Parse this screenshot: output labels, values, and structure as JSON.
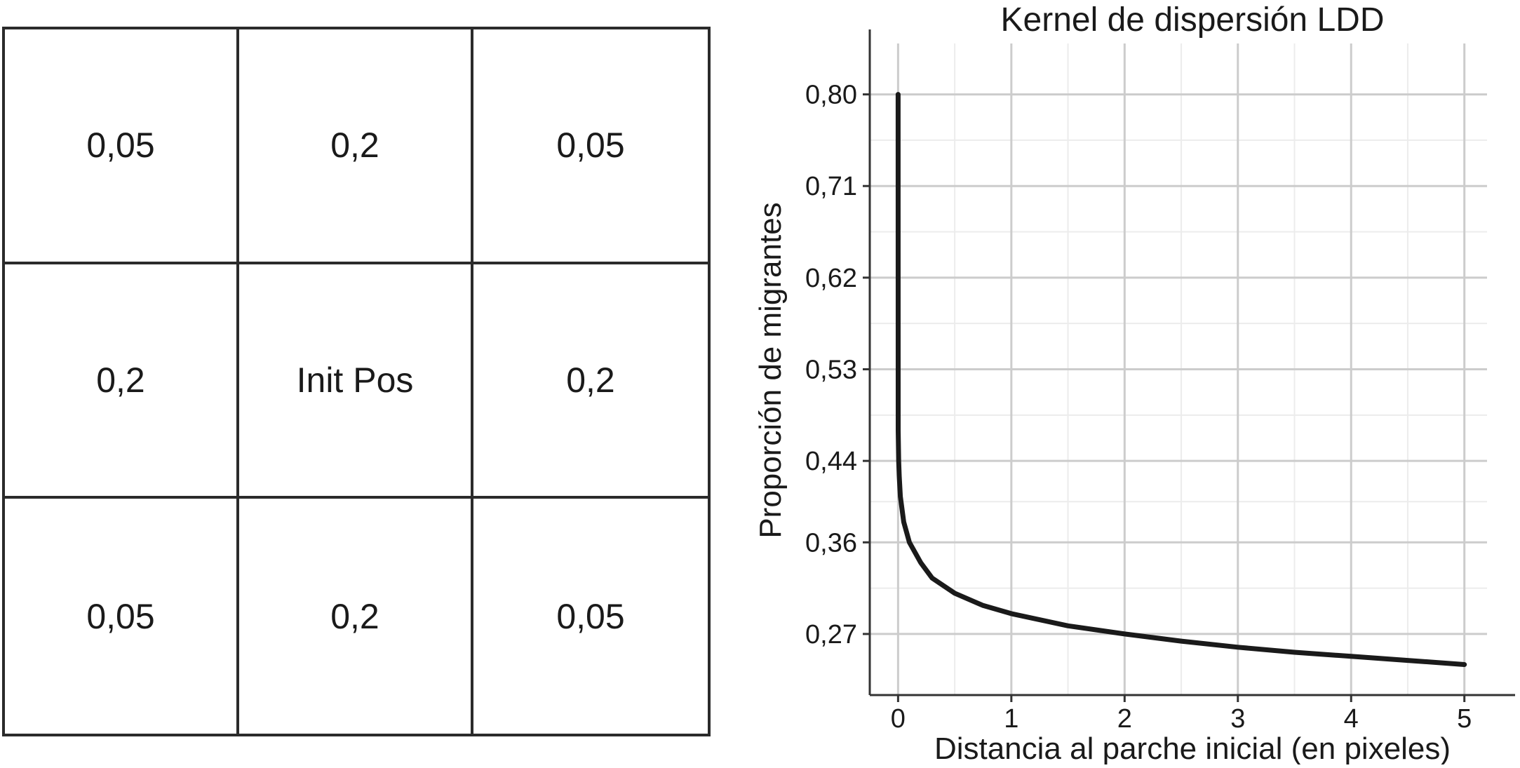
{
  "grid": {
    "cells": [
      [
        "0,05",
        "0,2",
        "0,05"
      ],
      [
        "0,2",
        "Init Pos",
        "0,2"
      ],
      [
        "0,05",
        "0,2",
        "0,05"
      ]
    ]
  },
  "chart_data": {
    "type": "line",
    "title": "Kernel de dispersión LDD",
    "xlabel": "Distancia al parche inicial (en pixeles)",
    "ylabel": "Proporción de migrantes",
    "xlim": [
      -0.25,
      5.2
    ],
    "ylim": [
      0.21,
      0.85
    ],
    "x_ticks": [
      0,
      1,
      2,
      3,
      4,
      5
    ],
    "x_tick_labels": [
      "0",
      "1",
      "2",
      "3",
      "4",
      "5"
    ],
    "y_ticks": [
      0.8,
      0.71,
      0.62,
      0.53,
      0.44,
      0.36,
      0.27
    ],
    "y_tick_labels": [
      "0,80",
      "0,71",
      "0,62",
      "0,53",
      "0,44",
      "0,36",
      "0,27"
    ],
    "grid": true,
    "line_color": "#1a1a1a",
    "grid_color": "#cccccc",
    "x": [
      0.0,
      0.001,
      0.005,
      0.01,
      0.02,
      0.05,
      0.1,
      0.2,
      0.3,
      0.5,
      0.75,
      1.0,
      1.5,
      2.0,
      2.5,
      3.0,
      3.5,
      4.0,
      4.5,
      5.0
    ],
    "y": [
      0.8,
      0.47,
      0.44,
      0.425,
      0.405,
      0.38,
      0.36,
      0.34,
      0.325,
      0.31,
      0.298,
      0.29,
      0.278,
      0.27,
      0.263,
      0.257,
      0.252,
      0.248,
      0.244,
      0.24
    ]
  }
}
